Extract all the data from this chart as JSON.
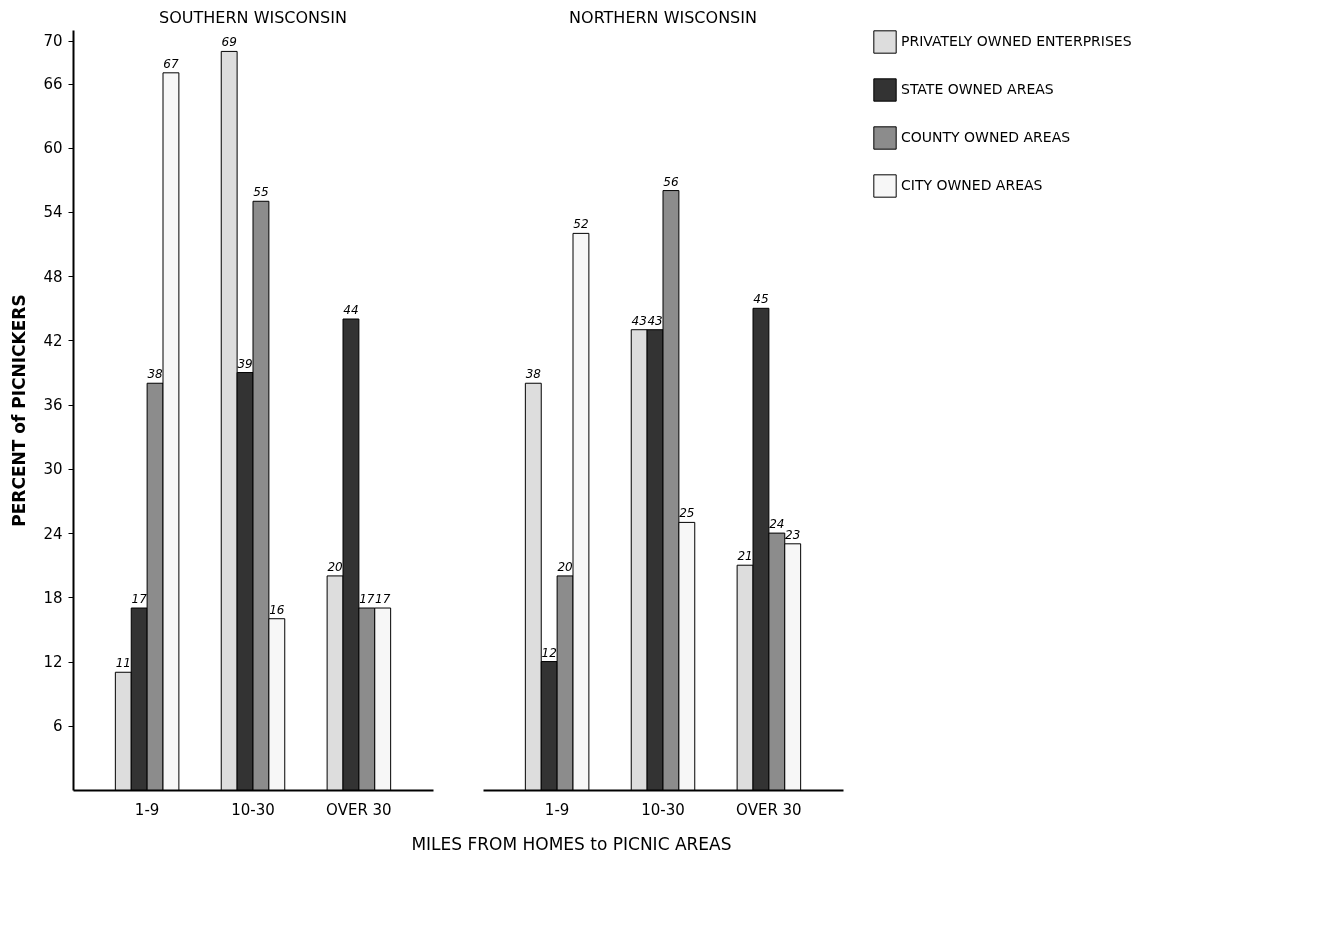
{
  "chart_data": [
    {
      "type": "bar",
      "title": "SOUTHERN WISCONSIN",
      "xlabel": "MILES FROM HOMES to PICNIC AREAS",
      "ylabel": "PERCENT of PICNICKERS",
      "categories": [
        "1-9",
        "10-30",
        "OVER 30"
      ],
      "ylim": [
        0,
        71
      ],
      "yticks": [
        6,
        12,
        18,
        24,
        30,
        36,
        42,
        48,
        54,
        60,
        66,
        70
      ],
      "legend": "right",
      "data_labels": true,
      "series": [
        {
          "name": "PRIVATELY OWNED ENTERPRISES",
          "color": "#dddddd",
          "values": [
            11,
            69,
            20
          ]
        },
        {
          "name": "STATE OWNED AREAS",
          "color": "#333333",
          "values": [
            17,
            39,
            44
          ]
        },
        {
          "name": "COUNTY OWNED AREAS",
          "color": "#8c8c8c",
          "values": [
            38,
            55,
            17
          ]
        },
        {
          "name": "CITY OWNED AREAS",
          "color": "#f7f7f7",
          "values": [
            67,
            16,
            17
          ]
        }
      ]
    },
    {
      "type": "bar",
      "title": "NORTHERN WISCONSIN",
      "categories": [
        "1-9",
        "10-30",
        "OVER 30"
      ],
      "tick_labels": "x",
      "legend": "right",
      "data_labels": true,
      "series": [
        {
          "name": "PRIVATELY OWNED ENTERPRISES",
          "color": "#dddddd",
          "values": [
            38,
            43,
            21
          ]
        },
        {
          "name": "STATE OWNED AREAS",
          "color": "#333333",
          "values": [
            12,
            43,
            45
          ]
        },
        {
          "name": "COUNTY OWNED AREAS",
          "color": "#8c8c8c",
          "values": [
            20,
            56,
            24
          ]
        },
        {
          "name": "CITY OWNED AREAS",
          "color": "#f7f7f7",
          "values": [
            52,
            25,
            23
          ]
        }
      ]
    }
  ]
}
